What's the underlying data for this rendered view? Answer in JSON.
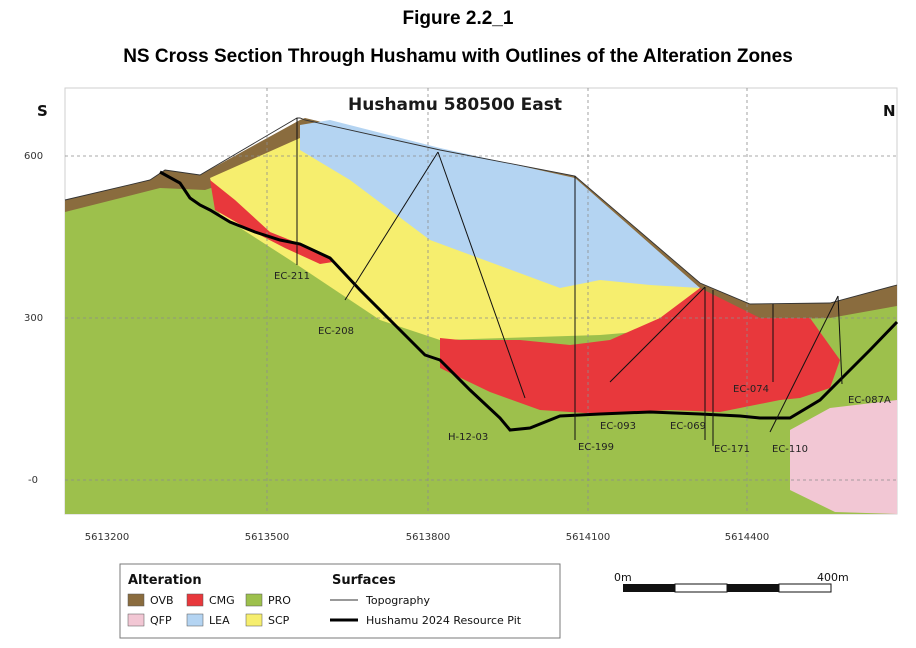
{
  "figure": {
    "label": "Figure 2.2_1",
    "caption": "NS Cross Section Through Hushamu with Outlines of the Alteration Zones"
  },
  "section": {
    "title": "Hushamu 580500 East",
    "south": "S",
    "north": "N",
    "elevation_ticks": [
      "600",
      "300",
      "-0"
    ],
    "northing_ticks": [
      "5613200",
      "5613500",
      "5613800",
      "5614100",
      "5614400"
    ]
  },
  "drillholes": [
    "EC-211",
    "EC-208",
    "H-12-03",
    "EC-199",
    "EC-093",
    "EC-069",
    "EC-171",
    "EC-074",
    "EC-110",
    "EC-087A"
  ],
  "legend": {
    "alteration_title": "Alteration",
    "surfaces_title": "Surfaces",
    "units": [
      {
        "code": "OVB",
        "color": "#8a6c3e"
      },
      {
        "code": "CMG",
        "color": "#e8383c"
      },
      {
        "code": "PRO",
        "color": "#9dc04c"
      },
      {
        "code": "QFP",
        "color": "#f2c7d4"
      },
      {
        "code": "LEA",
        "color": "#b4d4f2"
      },
      {
        "code": "SCP",
        "color": "#f6ee6e"
      }
    ],
    "surfaces": [
      {
        "label": "Topography"
      },
      {
        "label": "Hushamu 2024 Resource Pit"
      }
    ]
  },
  "scale_bar": {
    "start": "0m",
    "end": "400m"
  }
}
